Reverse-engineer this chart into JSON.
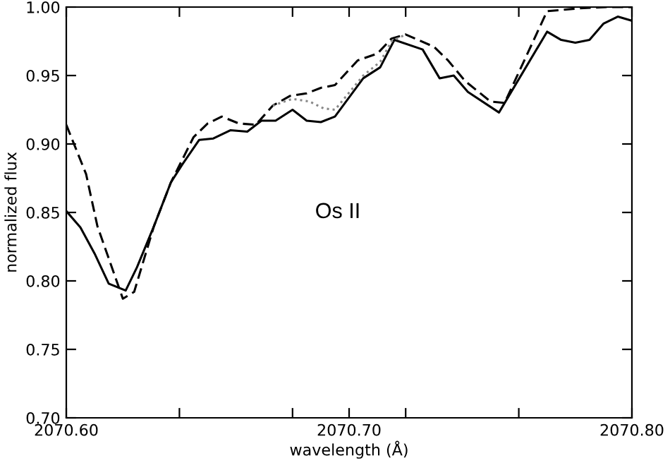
{
  "chart_data": {
    "type": "line",
    "xlabel": "wavelength (Å)",
    "ylabel": "normalized flux",
    "series": [
      {
        "color": "#000000",
        "line_style": "solid",
        "x": [
          2070.6,
          2070.605,
          2070.61,
          2070.615,
          2070.621,
          2070.625,
          2070.631,
          2070.637,
          2070.641,
          2070.647,
          2070.652,
          2070.658,
          2070.664,
          2070.669,
          2070.674,
          2070.68,
          2070.685,
          2070.69,
          2070.695,
          2070.705,
          2070.711,
          2070.716,
          2070.726,
          2070.732,
          2070.737,
          2070.742,
          2070.753,
          2070.77,
          2070.775,
          2070.78,
          2070.785,
          2070.79,
          2070.795,
          2070.8
        ],
        "values": [
          0.851,
          0.839,
          0.82,
          0.798,
          0.793,
          0.81,
          0.84,
          0.872,
          0.885,
          0.903,
          0.904,
          0.91,
          0.909,
          0.917,
          0.917,
          0.925,
          0.917,
          0.916,
          0.92,
          0.948,
          0.956,
          0.976,
          0.969,
          0.948,
          0.95,
          0.938,
          0.923,
          0.982,
          0.976,
          0.974,
          0.976,
          0.988,
          0.993,
          0.99
        ]
      },
      {
        "color": "#000000",
        "line_style": "dashed",
        "x": [
          2070.6,
          2070.607,
          2070.611,
          2070.62,
          2070.624,
          2070.631,
          2070.637,
          2070.645,
          2070.65,
          2070.655,
          2070.661,
          2070.667,
          2070.673,
          2070.679,
          2070.685,
          2070.69,
          2070.695,
          2070.703,
          2070.71,
          2070.715,
          2070.72,
          2070.73,
          2070.735,
          2070.741,
          2070.75,
          2070.755,
          2070.77,
          2070.781,
          2070.791,
          2070.8
        ],
        "values": [
          0.914,
          0.878,
          0.84,
          0.787,
          0.792,
          0.84,
          0.872,
          0.905,
          0.915,
          0.92,
          0.915,
          0.914,
          0.928,
          0.935,
          0.937,
          0.941,
          0.943,
          0.961,
          0.966,
          0.977,
          0.98,
          0.971,
          0.961,
          0.946,
          0.931,
          0.93,
          0.997,
          0.999,
          1.0,
          1.0
        ]
      },
      {
        "color": "#888888",
        "line_style": "dotted",
        "x": [
          2070.673,
          2070.68,
          2070.686,
          2070.691,
          2070.695,
          2070.705,
          2070.711,
          2070.715,
          2070.72
        ],
        "values": [
          0.928,
          0.933,
          0.931,
          0.926,
          0.925,
          0.95,
          0.96,
          0.975,
          0.98
        ]
      }
    ],
    "xlim": [
      2070.6,
      2070.8
    ],
    "xticks": [
      {
        "value": 2070.6,
        "label": "2070.60"
      },
      {
        "value": 2070.64,
        "label": null
      },
      {
        "value": 2070.68,
        "label": null
      },
      {
        "value": 2070.7,
        "label": "2070.70"
      },
      {
        "value": 2070.72,
        "label": null
      },
      {
        "value": 2070.76,
        "label": null
      },
      {
        "value": 2070.8,
        "label": "2070.80"
      }
    ],
    "ylim": [
      0.7,
      1.0
    ],
    "yticks": [
      {
        "value": 0.7,
        "label": "0.70"
      },
      {
        "value": 0.75,
        "label": "0.75"
      },
      {
        "value": 0.8,
        "label": "0.80"
      },
      {
        "value": 0.85,
        "label": "0.85"
      },
      {
        "value": 0.9,
        "label": "0.90"
      },
      {
        "value": 0.95,
        "label": "0.95"
      },
      {
        "value": 1.0,
        "label": "1.00"
      }
    ],
    "annotations": [
      "Os II"
    ],
    "grid": false,
    "legend": false,
    "marker": "none"
  }
}
